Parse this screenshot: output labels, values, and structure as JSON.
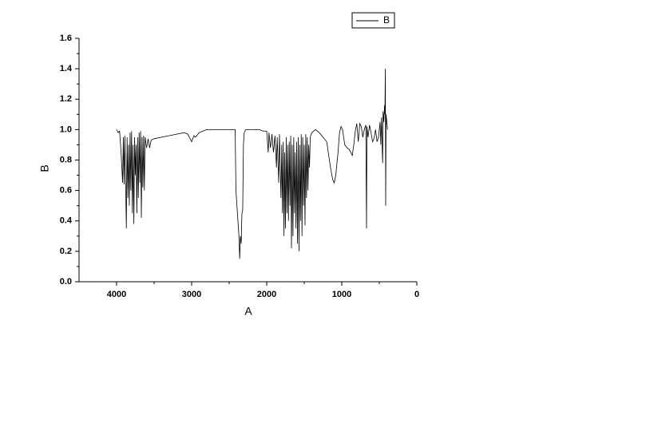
{
  "chart_data": {
    "type": "line",
    "xlabel": "A",
    "ylabel": "B",
    "xlim": [
      4500,
      0
    ],
    "ylim": [
      0,
      1.6
    ],
    "xticks": [
      4000,
      3000,
      2000,
      1000,
      0
    ],
    "yticks": [
      {
        "value": 0,
        "label": "0.0"
      },
      {
        "value": 0.2,
        "label": "0.2"
      },
      {
        "value": 0.4,
        "label": "0.4"
      },
      {
        "value": 0.6,
        "label": "0.6"
      },
      {
        "value": 0.8,
        "label": "0.8"
      },
      {
        "value": 1,
        "label": "1.0"
      },
      {
        "value": 1.2,
        "label": "1.2"
      },
      {
        "value": 1.4,
        "label": "1.4"
      },
      {
        "value": 1.6,
        "label": "1.6"
      }
    ],
    "legend": "top-right",
    "x": [
      4000,
      3980,
      3960,
      3940,
      3920,
      3910,
      3900,
      3890,
      3870,
      3860,
      3850,
      3840,
      3830,
      3820,
      3810,
      3800,
      3790,
      3780,
      3770,
      3760,
      3750,
      3740,
      3730,
      3720,
      3710,
      3700,
      3690,
      3680,
      3670,
      3660,
      3650,
      3640,
      3630,
      3620,
      3600,
      3580,
      3560,
      3540,
      3500,
      3400,
      3300,
      3200,
      3100,
      3050,
      3000,
      2970,
      2950,
      2900,
      2850,
      2800,
      2700,
      2600,
      2500,
      2420,
      2410,
      2390,
      2370,
      2360,
      2350,
      2340,
      2330,
      2320,
      2310,
      2300,
      2280,
      2200,
      2100,
      2050,
      2000,
      1980,
      1970,
      1950,
      1930,
      1910,
      1890,
      1870,
      1860,
      1840,
      1830,
      1810,
      1800,
      1790,
      1780,
      1770,
      1760,
      1750,
      1740,
      1730,
      1720,
      1710,
      1700,
      1690,
      1680,
      1670,
      1660,
      1650,
      1640,
      1630,
      1620,
      1610,
      1600,
      1590,
      1580,
      1570,
      1560,
      1550,
      1540,
      1530,
      1520,
      1510,
      1500,
      1490,
      1480,
      1470,
      1460,
      1450,
      1440,
      1430,
      1420,
      1400,
      1350,
      1300,
      1250,
      1200,
      1180,
      1150,
      1120,
      1100,
      1080,
      1050,
      1030,
      1010,
      990,
      960,
      930,
      900,
      880,
      860,
      840,
      820,
      800,
      780,
      760,
      740,
      720,
      700,
      680,
      670,
      665,
      650,
      630,
      610,
      590,
      570,
      550,
      530,
      510,
      490,
      480,
      470,
      460,
      455,
      450,
      440,
      430,
      425,
      420,
      415,
      410,
      400,
      390
    ],
    "series": [
      {
        "name": "B",
        "color": "#000000",
        "values": [
          1.0,
          0.98,
          0.99,
          0.85,
          0.65,
          0.95,
          0.64,
          0.96,
          0.35,
          0.95,
          0.55,
          0.9,
          0.5,
          0.98,
          0.6,
          0.99,
          0.45,
          0.9,
          0.38,
          0.95,
          0.7,
          0.9,
          0.45,
          0.95,
          0.55,
          0.98,
          0.65,
          0.99,
          0.42,
          0.95,
          0.62,
          0.96,
          0.6,
          0.95,
          0.88,
          0.94,
          0.88,
          0.93,
          0.94,
          0.95,
          0.96,
          0.97,
          0.98,
          0.97,
          0.92,
          0.96,
          0.95,
          0.98,
          0.99,
          1.0,
          1.0,
          1.0,
          1.0,
          1.0,
          0.6,
          0.45,
          0.3,
          0.15,
          0.3,
          0.25,
          0.45,
          0.47,
          0.9,
          0.98,
          1.0,
          1.0,
          1.0,
          0.99,
          0.99,
          0.85,
          0.98,
          0.88,
          0.97,
          0.85,
          0.96,
          0.75,
          0.95,
          0.65,
          0.97,
          0.55,
          0.9,
          0.45,
          0.92,
          0.3,
          0.85,
          0.35,
          0.95,
          0.45,
          0.9,
          0.4,
          0.92,
          0.5,
          0.96,
          0.22,
          0.9,
          0.3,
          0.95,
          0.45,
          0.85,
          0.35,
          0.92,
          0.25,
          0.95,
          0.2,
          0.9,
          0.4,
          0.97,
          0.3,
          0.95,
          0.5,
          0.9,
          0.37,
          0.97,
          0.55,
          0.95,
          0.6,
          0.9,
          0.75,
          0.95,
          0.98,
          1.0,
          0.98,
          0.95,
          0.92,
          0.85,
          0.75,
          0.67,
          0.65,
          0.7,
          0.85,
          0.98,
          1.02,
          1.0,
          0.9,
          0.88,
          0.87,
          0.85,
          0.83,
          0.9,
          0.99,
          1.04,
          0.92,
          1.04,
          1.02,
          0.95,
          1.0,
          1.03,
          0.35,
          1.02,
          0.95,
          1.03,
          0.98,
          0.92,
          0.94,
          1.0,
          0.92,
          0.95,
          1.05,
          0.9,
          1.08,
          0.85,
          0.78,
          1.12,
          1.05,
          1.16,
          1.1,
          1.4,
          0.5,
          1.1,
          1.05,
          1.0
        ]
      }
    ]
  }
}
